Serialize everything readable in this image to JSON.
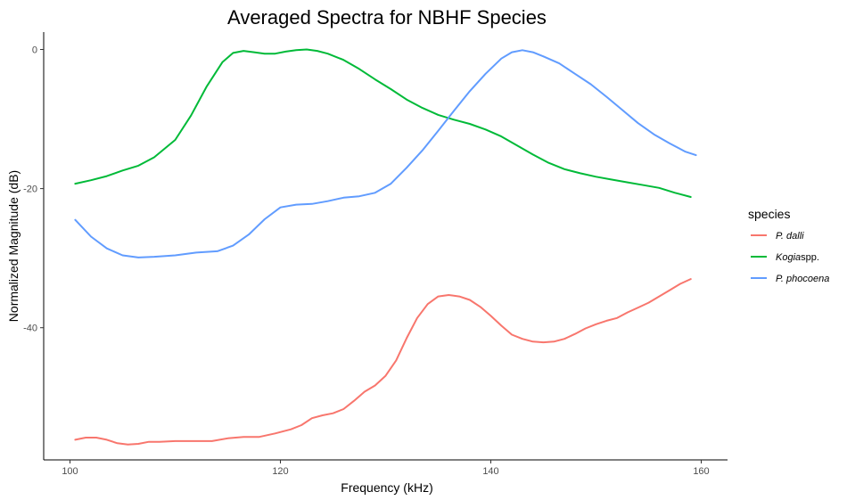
{
  "chart_data": {
    "type": "line",
    "title": "Averaged Spectra for NBHF Species",
    "xlabel": "Frequency (kHz)",
    "ylabel": "Normalized Magnitude (dB)",
    "xlim": [
      97.5,
      162.5
    ],
    "ylim": [
      -59,
      2.5
    ],
    "xticks": [
      100,
      120,
      140,
      160
    ],
    "xtick_labels": [
      "100",
      "120",
      "140",
      "160"
    ],
    "yticks": [
      0,
      -20,
      -40
    ],
    "ytick_labels": [
      "0",
      "-20",
      "-40"
    ],
    "grid": false,
    "legend": {
      "title": "species",
      "placement": "right",
      "entries": [
        {
          "label": "P. dalli",
          "italic": "P. dalli",
          "upright": ""
        },
        {
          "label": "Kogia spp.",
          "italic": "Kogia",
          "upright": "spp."
        },
        {
          "label": "P. phocoena",
          "italic": "P. phocoena",
          "upright": ""
        }
      ]
    },
    "series": [
      {
        "name": "P. dalli",
        "color": "#F8766D",
        "x": [
          100.5,
          101.5,
          102.5,
          103.5,
          104.5,
          105.5,
          106.5,
          107.5,
          108.5,
          110,
          112,
          113.5,
          115,
          116.5,
          118,
          119.5,
          121,
          122,
          123,
          124,
          125,
          126,
          127,
          128,
          129,
          130,
          131,
          132,
          133,
          134,
          135,
          136,
          137,
          138,
          139,
          140,
          141,
          142,
          143,
          144,
          145,
          146,
          147,
          148,
          149,
          150,
          151,
          152,
          153,
          154,
          155,
          156,
          157,
          158,
          159
        ],
        "y": [
          -56.1,
          -55.8,
          -55.8,
          -56.1,
          -56.6,
          -56.8,
          -56.7,
          -56.4,
          -56.4,
          -56.3,
          -56.3,
          -56.3,
          -55.9,
          -55.7,
          -55.7,
          -55.2,
          -54.6,
          -54.0,
          -53.0,
          -52.6,
          -52.3,
          -51.7,
          -50.5,
          -49.2,
          -48.3,
          -46.9,
          -44.7,
          -41.5,
          -38.6,
          -36.6,
          -35.5,
          -35.3,
          -35.5,
          -36.0,
          -37.0,
          -38.3,
          -39.7,
          -41.0,
          -41.6,
          -42.0,
          -42.1,
          -42.0,
          -41.6,
          -40.9,
          -40.1,
          -39.5,
          -39.0,
          -38.6,
          -37.8,
          -37.1,
          -36.4,
          -35.5,
          -34.6,
          -33.7,
          -33.0
        ]
      },
      {
        "name": "Kogia spp.",
        "color": "#00BA38",
        "x": [
          100.5,
          102,
          103.5,
          105,
          106.5,
          108,
          110,
          111.5,
          113,
          114.5,
          115.5,
          116.5,
          117.5,
          118.5,
          119.5,
          120.5,
          121.5,
          122.5,
          123.5,
          124.5,
          126,
          127.5,
          129,
          130.5,
          132,
          133.5,
          135,
          136.5,
          138,
          139.5,
          141,
          142.5,
          144,
          145.5,
          147,
          148.5,
          150,
          151.5,
          153,
          154.5,
          156,
          157.5,
          159
        ],
        "y": [
          -19.3,
          -18.8,
          -18.2,
          -17.4,
          -16.7,
          -15.5,
          -13.0,
          -9.5,
          -5.3,
          -1.8,
          -0.5,
          -0.2,
          -0.4,
          -0.6,
          -0.6,
          -0.3,
          -0.1,
          0.0,
          -0.2,
          -0.6,
          -1.5,
          -2.8,
          -4.3,
          -5.7,
          -7.2,
          -8.4,
          -9.4,
          -10.1,
          -10.7,
          -11.5,
          -12.5,
          -13.8,
          -15.1,
          -16.3,
          -17.2,
          -17.8,
          -18.3,
          -18.7,
          -19.1,
          -19.5,
          -19.9,
          -20.6,
          -21.2
        ]
      },
      {
        "name": "P. phocoena",
        "color": "#619CFF",
        "x": [
          100.5,
          102,
          103.5,
          105,
          106.5,
          108,
          110,
          112,
          114,
          115.5,
          117,
          118.5,
          120,
          121.5,
          123,
          124.5,
          126,
          127.5,
          129,
          130.5,
          132,
          133.5,
          135,
          136.5,
          138,
          139.5,
          141,
          142,
          143,
          144,
          145,
          146.5,
          148,
          149.5,
          151,
          152.5,
          154,
          155.5,
          157,
          158.5,
          159.5
        ],
        "y": [
          -24.5,
          -26.9,
          -28.6,
          -29.6,
          -29.9,
          -29.8,
          -29.6,
          -29.2,
          -29.0,
          -28.2,
          -26.6,
          -24.4,
          -22.7,
          -22.3,
          -22.2,
          -21.8,
          -21.3,
          -21.1,
          -20.6,
          -19.3,
          -17.0,
          -14.5,
          -11.7,
          -8.8,
          -6.0,
          -3.5,
          -1.3,
          -0.4,
          -0.1,
          -0.4,
          -1.0,
          -2.0,
          -3.5,
          -5.0,
          -6.8,
          -8.7,
          -10.6,
          -12.2,
          -13.5,
          -14.7,
          -15.2
        ]
      }
    ]
  }
}
